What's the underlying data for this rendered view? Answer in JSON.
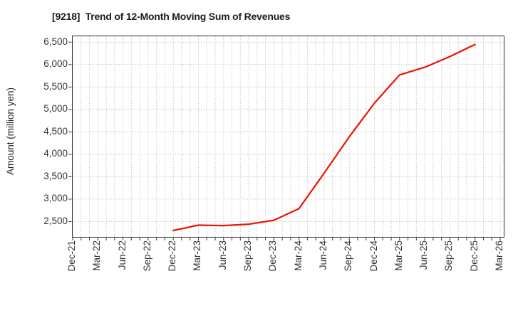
{
  "chart_data": {
    "type": "line",
    "title": "[9218]  Trend of 12-Month Moving Sum of Revenues",
    "ylabel": "Amount (million yen)",
    "x_tick_labels": [
      "Dec-21",
      "Mar-22",
      "Jun-22",
      "Sep-22",
      "Dec-22",
      "Mar-23",
      "Jun-23",
      "Sep-23",
      "Dec-23",
      "Mar-24",
      "Jun-24",
      "Sep-24",
      "Dec-24",
      "Mar-25",
      "Jun-25",
      "Sep-25",
      "Dec-25",
      "Mar-26"
    ],
    "y_ticks": [
      2500,
      3000,
      3500,
      4000,
      4500,
      5000,
      5500,
      6000,
      6500
    ],
    "y_tick_labels": [
      "2,500",
      "3,000",
      "3,500",
      "4,000",
      "4,500",
      "5,000",
      "5,500",
      "6,000",
      "6,500"
    ],
    "ylim": [
      2158,
      6632
    ],
    "grid": {
      "style": "dotted",
      "vertical": "monthly",
      "horizontal_step": 500
    },
    "legend": "none",
    "series": [
      {
        "name": "12-Month Moving Sum of Revenues",
        "color": "#ee1100",
        "points": [
          {
            "x": "Dec-22",
            "y": 2300
          },
          {
            "x": "Mar-23",
            "y": 2420
          },
          {
            "x": "Jun-23",
            "y": 2410
          },
          {
            "x": "Sep-23",
            "y": 2440
          },
          {
            "x": "Dec-23",
            "y": 2530
          },
          {
            "x": "Mar-24",
            "y": 2790
          },
          {
            "x": "Jun-24",
            "y": 3580
          },
          {
            "x": "Sep-24",
            "y": 4390
          },
          {
            "x": "Dec-24",
            "y": 5140
          },
          {
            "x": "Mar-25",
            "y": 5770
          },
          {
            "x": "Jun-25",
            "y": 5940
          },
          {
            "x": "Sep-25",
            "y": 6180
          },
          {
            "x": "Dec-25",
            "y": 6450
          }
        ]
      }
    ],
    "colors": {
      "line": "#ee1100",
      "grid": "#b3b3b3",
      "spine": "#2b2b2b",
      "text": "#333333"
    }
  }
}
